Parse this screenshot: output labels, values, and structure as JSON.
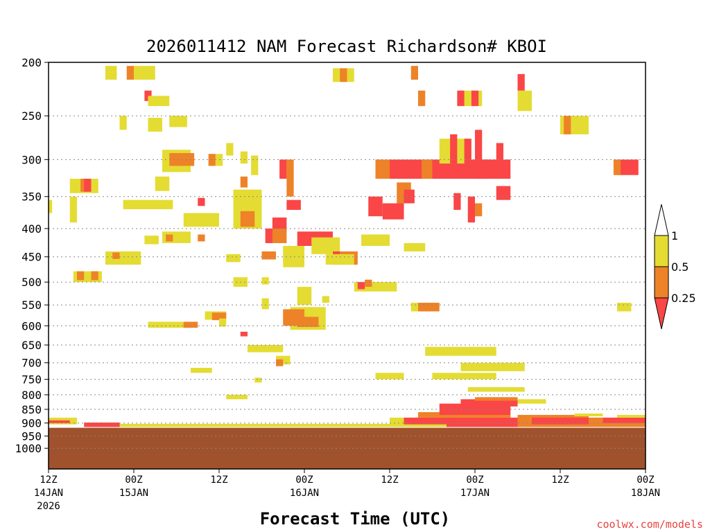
{
  "chart_data": {
    "type": "heatmap",
    "title": "2026011412 NAM Forecast Richardson# KBOI",
    "xlabel": "Forecast Time (UTC)",
    "ylabel": "",
    "credit": "coolwx.com/models",
    "y_scale": "log-pressure (hPa, inverted)",
    "ylim": [
      200,
      1000
    ],
    "yticks": [
      200,
      250,
      300,
      350,
      400,
      450,
      500,
      550,
      600,
      650,
      700,
      750,
      800,
      850,
      900,
      950,
      1000
    ],
    "gridlines": "dotted at every pressure tick",
    "xlim_hours": [
      0,
      84
    ],
    "x_ticks": [
      {
        "hour": 0,
        "lines": [
          "12Z",
          "14JAN",
          "2026"
        ]
      },
      {
        "hour": 12,
        "lines": [
          "00Z",
          "15JAN"
        ]
      },
      {
        "hour": 24,
        "lines": [
          "12Z"
        ]
      },
      {
        "hour": 36,
        "lines": [
          "00Z",
          "16JAN"
        ]
      },
      {
        "hour": 48,
        "lines": [
          "12Z"
        ]
      },
      {
        "hour": 60,
        "lines": [
          "00Z",
          "17JAN"
        ]
      },
      {
        "hour": 72,
        "lines": [
          "12Z"
        ]
      },
      {
        "hour": 84,
        "lines": [
          "00Z",
          "18JAN"
        ]
      }
    ],
    "colorbar": {
      "levels": [
        {
          "label": "1",
          "color": "#ffffff"
        },
        {
          "label": "0.5",
          "color": "#e4dc32"
        },
        {
          "label": "0.25",
          "color": "#ee8228"
        },
        {
          "label": "",
          "color": "#fa4646"
        }
      ]
    },
    "terrain_color": "#a0522d",
    "terrain_top_hpa": 918,
    "cells": [
      {
        "h": 8,
        "p": 203,
        "dh": 1.6,
        "dp": 12,
        "c": "#e4dc32"
      },
      {
        "h": 11,
        "p": 203,
        "dh": 1,
        "dp": 12,
        "c": "#ee8228"
      },
      {
        "h": 12,
        "p": 203,
        "dh": 3,
        "dp": 12,
        "c": "#e4dc32"
      },
      {
        "h": 13.5,
        "p": 225,
        "dh": 1,
        "dp": 10,
        "c": "#fa4646"
      },
      {
        "h": 14,
        "p": 230,
        "dh": 3,
        "dp": 10,
        "c": "#e4dc32"
      },
      {
        "h": 14,
        "p": 252,
        "dh": 2,
        "dp": 15,
        "c": "#e4dc32"
      },
      {
        "h": 17.5,
        "p": 250,
        "dh": 1,
        "dp": 12,
        "c": "#ee8228"
      },
      {
        "h": 17,
        "p": 250,
        "dh": 2.5,
        "dp": 12,
        "c": "#e4dc32"
      },
      {
        "h": 10,
        "p": 250,
        "dh": 1,
        "dp": 15,
        "c": "#e4dc32"
      },
      {
        "h": 16,
        "p": 288,
        "dh": 4,
        "dp": 28,
        "c": "#e4dc32"
      },
      {
        "h": 17,
        "p": 292,
        "dh": 3.5,
        "dp": 16,
        "c": "#ee8228"
      },
      {
        "h": 22.5,
        "p": 293,
        "dh": 1,
        "dp": 15,
        "c": "#ee8228"
      },
      {
        "h": 23.5,
        "p": 293,
        "dh": 1,
        "dp": 15,
        "c": "#e4dc32"
      },
      {
        "h": 25,
        "p": 280,
        "dh": 1,
        "dp": 15,
        "c": "#e4dc32"
      },
      {
        "h": 27,
        "p": 290,
        "dh": 1,
        "dp": 15,
        "c": "#e4dc32"
      },
      {
        "h": 28.5,
        "p": 295,
        "dh": 1,
        "dp": 25,
        "c": "#e4dc32"
      },
      {
        "h": 3,
        "p": 325,
        "dh": 4,
        "dp": 20,
        "c": "#e4dc32"
      },
      {
        "h": 4.5,
        "p": 325,
        "dh": 1,
        "dp": 18,
        "c": "#ee8228"
      },
      {
        "h": 5,
        "p": 325,
        "dh": 1,
        "dp": 18,
        "c": "#fa4646"
      },
      {
        "h": 15,
        "p": 322,
        "dh": 2,
        "dp": 20,
        "c": "#e4dc32"
      },
      {
        "h": 0,
        "p": 355,
        "dh": 0.5,
        "dp": 20,
        "c": "#e4dc32"
      },
      {
        "h": 3,
        "p": 350,
        "dh": 1,
        "dp": 40,
        "c": "#e4dc32"
      },
      {
        "h": 10.5,
        "p": 355,
        "dh": 7,
        "dp": 14,
        "c": "#e4dc32"
      },
      {
        "h": 21,
        "p": 352,
        "dh": 1,
        "dp": 12,
        "c": "#fa4646"
      },
      {
        "h": 26,
        "p": 340,
        "dh": 4,
        "dp": 60,
        "c": "#e4dc32"
      },
      {
        "h": 27,
        "p": 322,
        "dh": 1,
        "dp": 15,
        "c": "#ee8228"
      },
      {
        "h": 27,
        "p": 372,
        "dh": 2,
        "dp": 25,
        "c": "#ee8228"
      },
      {
        "h": 19,
        "p": 375,
        "dh": 5,
        "dp": 22,
        "c": "#e4dc32"
      },
      {
        "h": 16,
        "p": 405,
        "dh": 4,
        "dp": 20,
        "c": "#e4dc32"
      },
      {
        "h": 16.5,
        "p": 410,
        "dh": 1,
        "dp": 12,
        "c": "#ee8228"
      },
      {
        "h": 21,
        "p": 410,
        "dh": 1,
        "dp": 12,
        "c": "#ee8228"
      },
      {
        "h": 13.5,
        "p": 412,
        "dh": 2,
        "dp": 15,
        "c": "#e4dc32"
      },
      {
        "h": 8,
        "p": 440,
        "dh": 5,
        "dp": 25,
        "c": "#e4dc32"
      },
      {
        "h": 9,
        "p": 442,
        "dh": 1,
        "dp": 12,
        "c": "#ee8228"
      },
      {
        "h": 3.5,
        "p": 478,
        "dh": 4,
        "dp": 22,
        "c": "#e4dc32"
      },
      {
        "h": 4,
        "p": 478,
        "dh": 1,
        "dp": 18,
        "c": "#ee8228"
      },
      {
        "h": 6,
        "p": 478,
        "dh": 1,
        "dp": 18,
        "c": "#ee8228"
      },
      {
        "h": 32.5,
        "p": 300,
        "dh": 1,
        "dp": 25,
        "c": "#fa4646"
      },
      {
        "h": 33.5,
        "p": 300,
        "dh": 1,
        "dp": 50,
        "c": "#ee8228"
      },
      {
        "h": 33.5,
        "p": 355,
        "dh": 2,
        "dp": 15,
        "c": "#fa4646"
      },
      {
        "h": 31.5,
        "p": 382,
        "dh": 2,
        "dp": 25,
        "c": "#fa4646"
      },
      {
        "h": 31,
        "p": 400,
        "dh": 2.5,
        "dp": 25,
        "c": "#ee8228"
      },
      {
        "h": 30.5,
        "p": 400,
        "dh": 1,
        "dp": 25,
        "c": "#fa4646"
      },
      {
        "h": 35,
        "p": 405,
        "dh": 5,
        "dp": 25,
        "c": "#fa4646"
      },
      {
        "h": 33,
        "p": 430,
        "dh": 3,
        "dp": 40,
        "c": "#e4dc32"
      },
      {
        "h": 37,
        "p": 415,
        "dh": 4,
        "dp": 30,
        "c": "#e4dc32"
      },
      {
        "h": 40.5,
        "p": 440,
        "dh": 3,
        "dp": 25,
        "c": "#ee8228"
      },
      {
        "h": 40,
        "p": 440,
        "dh": 1,
        "dp": 25,
        "c": "#fa4646"
      },
      {
        "h": 39,
        "p": 445,
        "dh": 4,
        "dp": 20,
        "c": "#e4dc32"
      },
      {
        "h": 44,
        "p": 410,
        "dh": 4,
        "dp": 20,
        "c": "#e4dc32"
      },
      {
        "h": 30,
        "p": 440,
        "dh": 2,
        "dp": 15,
        "c": "#ee8228"
      },
      {
        "h": 25,
        "p": 445,
        "dh": 2,
        "dp": 15,
        "c": "#e4dc32"
      },
      {
        "h": 26,
        "p": 490,
        "dh": 2,
        "dp": 20,
        "c": "#e4dc32"
      },
      {
        "h": 30,
        "p": 490,
        "dh": 1,
        "dp": 15,
        "c": "#e4dc32"
      },
      {
        "h": 35,
        "p": 510,
        "dh": 2,
        "dp": 40,
        "c": "#e4dc32"
      },
      {
        "h": 43,
        "p": 500,
        "dh": 6,
        "dp": 20,
        "c": "#e4dc32"
      },
      {
        "h": 43.5,
        "p": 500,
        "dh": 1,
        "dp": 15,
        "c": "#fa4646"
      },
      {
        "h": 44.5,
        "p": 495,
        "dh": 1,
        "dp": 15,
        "c": "#ee8228"
      },
      {
        "h": 34,
        "p": 555,
        "dh": 5,
        "dp": 55,
        "c": "#e4dc32"
      },
      {
        "h": 33,
        "p": 560,
        "dh": 3,
        "dp": 40,
        "c": "#ee8228"
      },
      {
        "h": 35,
        "p": 578,
        "dh": 3,
        "dp": 25,
        "c": "#ee8228"
      },
      {
        "h": 30,
        "p": 535,
        "dh": 1,
        "dp": 25,
        "c": "#e4dc32"
      },
      {
        "h": 38.5,
        "p": 530,
        "dh": 1,
        "dp": 15,
        "c": "#e4dc32"
      },
      {
        "h": 22,
        "p": 565,
        "dh": 3,
        "dp": 20,
        "c": "#e4dc32"
      },
      {
        "h": 23,
        "p": 568,
        "dh": 2,
        "dp": 18,
        "c": "#ee8228"
      },
      {
        "h": 14,
        "p": 590,
        "dh": 6,
        "dp": 15,
        "c": "#e4dc32"
      },
      {
        "h": 19,
        "p": 590,
        "dh": 2,
        "dp": 15,
        "c": "#ee8228"
      },
      {
        "h": 24,
        "p": 582,
        "dh": 1,
        "dp": 20,
        "c": "#e4dc32"
      },
      {
        "h": 27,
        "p": 615,
        "dh": 1,
        "dp": 12,
        "c": "#fa4646"
      },
      {
        "h": 28,
        "p": 650,
        "dh": 5,
        "dp": 20,
        "c": "#e4dc32"
      },
      {
        "h": 32,
        "p": 680,
        "dh": 2,
        "dp": 25,
        "c": "#e4dc32"
      },
      {
        "h": 32,
        "p": 690,
        "dh": 1,
        "dp": 20,
        "c": "#ee8228"
      },
      {
        "h": 20,
        "p": 715,
        "dh": 3,
        "dp": 15,
        "c": "#e4dc32"
      },
      {
        "h": 25,
        "p": 800,
        "dh": 3,
        "dp": 15,
        "c": "#e4dc32"
      },
      {
        "h": 29,
        "p": 745,
        "dh": 1,
        "dp": 15,
        "c": "#e4dc32"
      },
      {
        "h": 46,
        "p": 300,
        "dh": 2,
        "dp": 25,
        "c": "#ee8228"
      },
      {
        "h": 48,
        "p": 300,
        "dh": 6,
        "dp": 25,
        "c": "#fa4646"
      },
      {
        "h": 54,
        "p": 300,
        "dh": 8,
        "dp": 25,
        "c": "#fa4646"
      },
      {
        "h": 52.5,
        "p": 300,
        "dh": 1.5,
        "dp": 25,
        "c": "#ee8228"
      },
      {
        "h": 61,
        "p": 300,
        "dh": 4,
        "dp": 25,
        "c": "#fa4646"
      },
      {
        "h": 45,
        "p": 350,
        "dh": 2,
        "dp": 30,
        "c": "#fa4646"
      },
      {
        "h": 47,
        "p": 360,
        "dh": 3,
        "dp": 25,
        "c": "#fa4646"
      },
      {
        "h": 49,
        "p": 330,
        "dh": 2,
        "dp": 30,
        "c": "#ee8228"
      },
      {
        "h": 50,
        "p": 340,
        "dh": 1.5,
        "dp": 20,
        "c": "#fa4646"
      },
      {
        "h": 57,
        "p": 345,
        "dh": 1,
        "dp": 25,
        "c": "#fa4646"
      },
      {
        "h": 59,
        "p": 350,
        "dh": 1,
        "dp": 40,
        "c": "#fa4646"
      },
      {
        "h": 60,
        "p": 360,
        "dh": 1,
        "dp": 20,
        "c": "#ee8228"
      },
      {
        "h": 63,
        "p": 335,
        "dh": 2,
        "dp": 20,
        "c": "#fa4646"
      },
      {
        "h": 55,
        "p": 275,
        "dh": 4,
        "dp": 30,
        "c": "#e4dc32"
      },
      {
        "h": 56.5,
        "p": 270,
        "dh": 1,
        "dp": 35,
        "c": "#fa4646"
      },
      {
        "h": 58.5,
        "p": 275,
        "dh": 1,
        "dp": 40,
        "c": "#fa4646"
      },
      {
        "h": 60,
        "p": 265,
        "dh": 1,
        "dp": 60,
        "c": "#fa4646"
      },
      {
        "h": 63,
        "p": 280,
        "dh": 1,
        "dp": 30,
        "c": "#fa4646"
      },
      {
        "h": 58,
        "p": 225,
        "dh": 3,
        "dp": 15,
        "c": "#e4dc32"
      },
      {
        "h": 57.5,
        "p": 225,
        "dh": 1,
        "dp": 15,
        "c": "#fa4646"
      },
      {
        "h": 59.5,
        "p": 225,
        "dh": 1,
        "dp": 15,
        "c": "#fa4646"
      },
      {
        "h": 52,
        "p": 225,
        "dh": 1,
        "dp": 15,
        "c": "#ee8228"
      },
      {
        "h": 66,
        "p": 225,
        "dh": 2,
        "dp": 20,
        "c": "#e4dc32"
      },
      {
        "h": 66,
        "p": 210,
        "dh": 1,
        "dp": 15,
        "c": "#fa4646"
      },
      {
        "h": 51,
        "p": 203,
        "dh": 1,
        "dp": 12,
        "c": "#ee8228"
      },
      {
        "h": 72,
        "p": 250,
        "dh": 4,
        "dp": 20,
        "c": "#e4dc32"
      },
      {
        "h": 72.5,
        "p": 250,
        "dh": 1,
        "dp": 20,
        "c": "#ee8228"
      },
      {
        "h": 40,
        "p": 205,
        "dh": 3,
        "dp": 12,
        "c": "#e4dc32"
      },
      {
        "h": 41,
        "p": 205,
        "dh": 1,
        "dp": 12,
        "c": "#ee8228"
      },
      {
        "h": 80,
        "p": 300,
        "dh": 3,
        "dp": 20,
        "c": "#fa4646"
      },
      {
        "h": 79.5,
        "p": 300,
        "dh": 1,
        "dp": 20,
        "c": "#ee8228"
      },
      {
        "h": 50,
        "p": 425,
        "dh": 3,
        "dp": 15,
        "c": "#e4dc32"
      },
      {
        "h": 52,
        "p": 545,
        "dh": 3,
        "dp": 20,
        "c": "#ee8228"
      },
      {
        "h": 51,
        "p": 545,
        "dh": 1,
        "dp": 20,
        "c": "#e4dc32"
      },
      {
        "h": 53,
        "p": 655,
        "dh": 10,
        "dp": 25,
        "c": "#e4dc32"
      },
      {
        "h": 58,
        "p": 700,
        "dh": 9,
        "dp": 25,
        "c": "#e4dc32"
      },
      {
        "h": 54,
        "p": 730,
        "dh": 9,
        "dp": 20,
        "c": "#e4dc32"
      },
      {
        "h": 46,
        "p": 730,
        "dh": 4,
        "dp": 20,
        "c": "#e4dc32"
      },
      {
        "h": 59,
        "p": 775,
        "dh": 8,
        "dp": 15,
        "c": "#e4dc32"
      },
      {
        "h": 80,
        "p": 545,
        "dh": 2,
        "dp": 20,
        "c": "#e4dc32"
      }
    ],
    "bands": [
      {
        "h": [
          0,
          4
        ],
        "p0": 880,
        "p1": 905,
        "c": "#e4dc32"
      },
      {
        "h": [
          0,
          3
        ],
        "p0": 890,
        "p1": 900,
        "c": "#fa4646"
      },
      {
        "h": [
          5,
          10
        ],
        "p0": 898,
        "p1": 915,
        "c": "#fa4646"
      },
      {
        "h": [
          10,
          30
        ],
        "p0": 903,
        "p1": 915,
        "c": "#e4dc32"
      },
      {
        "h": [
          30,
          48
        ],
        "p0": 903,
        "p1": 915,
        "c": "#e4dc32"
      },
      {
        "h": [
          48,
          56
        ],
        "p0": 880,
        "p1": 915,
        "c": "#e4dc32"
      },
      {
        "h": [
          50,
          58
        ],
        "p0": 880,
        "p1": 905,
        "c": "#fa4646"
      },
      {
        "h": [
          52,
          65
        ],
        "p0": 860,
        "p1": 880,
        "c": "#ee8228"
      },
      {
        "h": [
          55,
          65
        ],
        "p0": 830,
        "p1": 870,
        "c": "#fa4646"
      },
      {
        "h": [
          58,
          66
        ],
        "p0": 815,
        "p1": 840,
        "c": "#fa4646"
      },
      {
        "h": [
          60,
          66
        ],
        "p0": 808,
        "p1": 820,
        "c": "#ee8228"
      },
      {
        "h": [
          66,
          70
        ],
        "p0": 815,
        "p1": 830,
        "c": "#e4dc32"
      },
      {
        "h": [
          56,
          66
        ],
        "p0": 880,
        "p1": 915,
        "c": "#fa4646"
      },
      {
        "h": [
          66,
          76
        ],
        "p0": 870,
        "p1": 915,
        "c": "#ee8228"
      },
      {
        "h": [
          68,
          78
        ],
        "p0": 880,
        "p1": 905,
        "c": "#fa4646"
      },
      {
        "h": [
          74,
          78
        ],
        "p0": 865,
        "p1": 875,
        "c": "#e4dc32"
      },
      {
        "h": [
          76,
          84
        ],
        "p0": 880,
        "p1": 915,
        "c": "#ee8228"
      },
      {
        "h": [
          78,
          84
        ],
        "p0": 880,
        "p1": 900,
        "c": "#fa4646"
      },
      {
        "h": [
          80,
          84
        ],
        "p0": 870,
        "p1": 880,
        "c": "#e4dc32"
      }
    ]
  }
}
